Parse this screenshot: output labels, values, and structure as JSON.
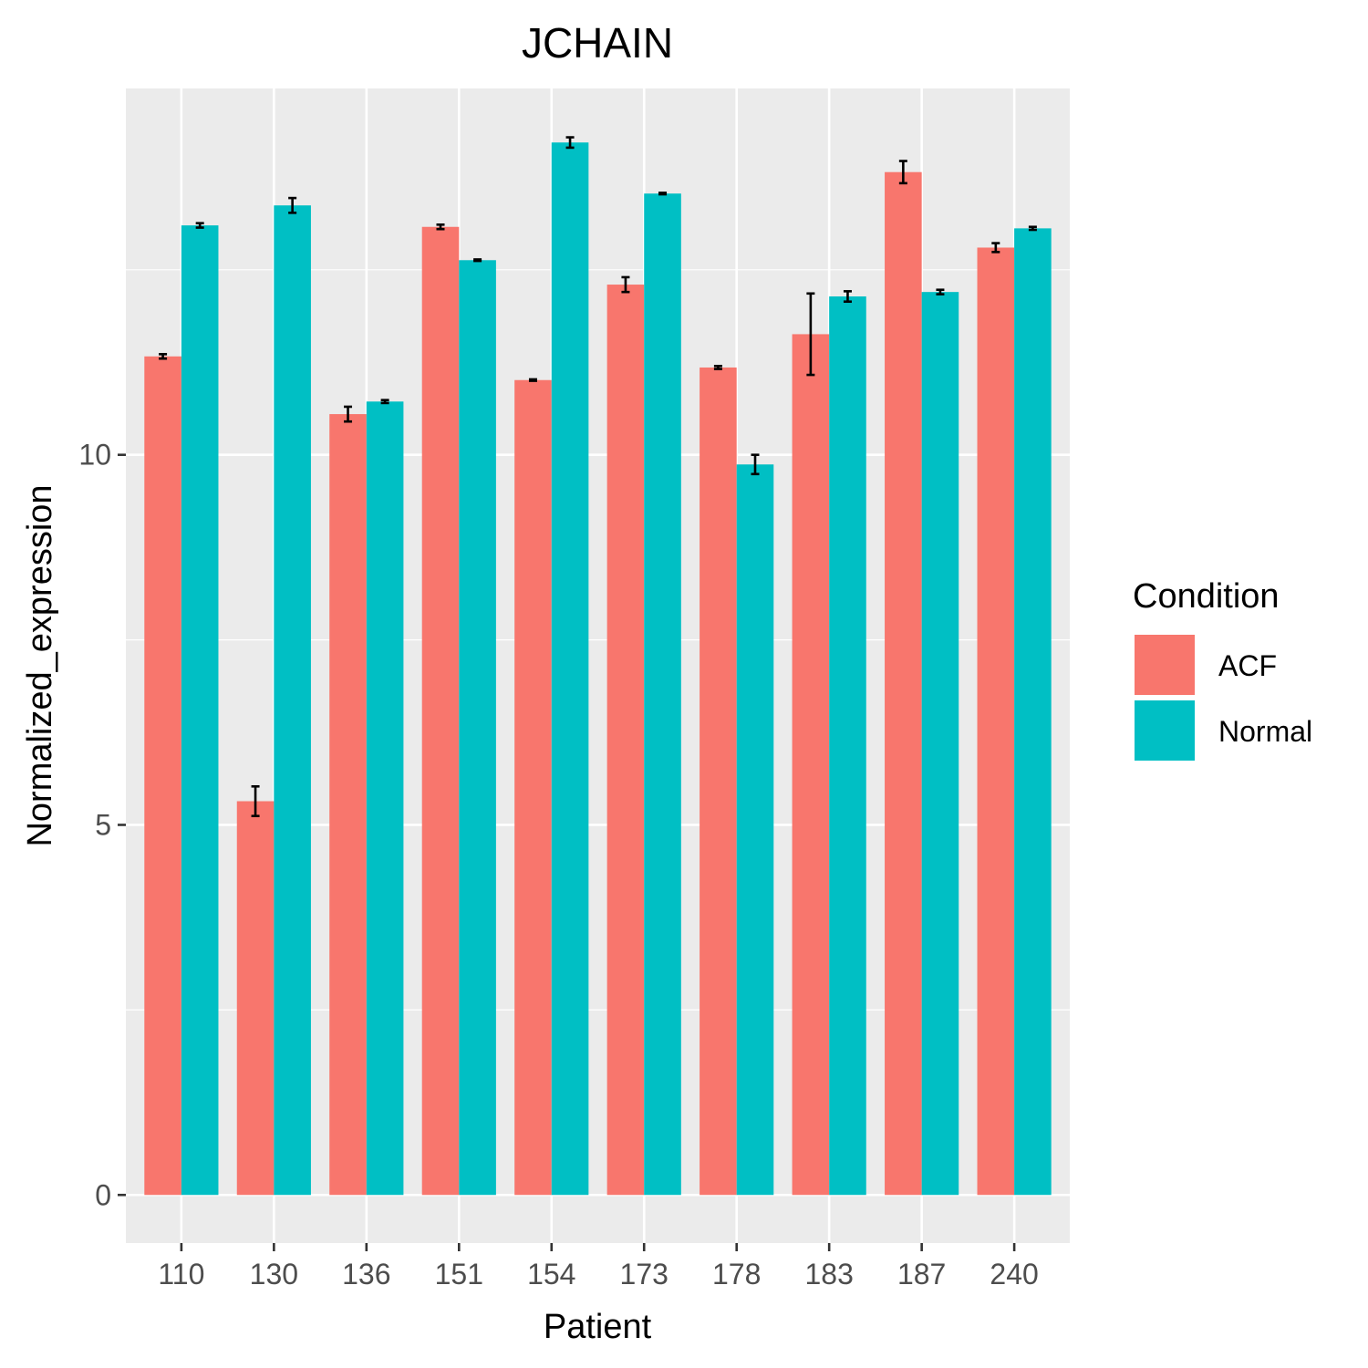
{
  "chart_data": {
    "type": "bar",
    "title": "JCHAIN",
    "xlabel": "Patient",
    "ylabel": "Normalized_expression",
    "categories": [
      "110",
      "130",
      "136",
      "151",
      "154",
      "173",
      "178",
      "183",
      "187",
      "240"
    ],
    "series": [
      {
        "name": "ACF",
        "color": "#F8766D",
        "values": [
          11.33,
          5.32,
          10.55,
          13.08,
          11.01,
          12.3,
          11.18,
          11.63,
          13.82,
          12.8
        ],
        "errors": [
          0.03,
          0.2,
          0.1,
          0.03,
          0.01,
          0.1,
          0.02,
          0.55,
          0.15,
          0.06
        ]
      },
      {
        "name": "Normal",
        "color": "#00BFC4",
        "values": [
          13.1,
          13.37,
          10.72,
          12.63,
          14.22,
          13.53,
          9.87,
          12.14,
          12.2,
          13.06
        ],
        "errors": [
          0.03,
          0.1,
          0.02,
          0.01,
          0.07,
          0.01,
          0.13,
          0.07,
          0.03,
          0.02
        ]
      }
    ],
    "yticks": [
      0,
      5,
      10
    ],
    "ylim": [
      -0.65,
      14.95
    ],
    "grid": true,
    "legend": {
      "title": "Condition",
      "position": "right"
    }
  }
}
